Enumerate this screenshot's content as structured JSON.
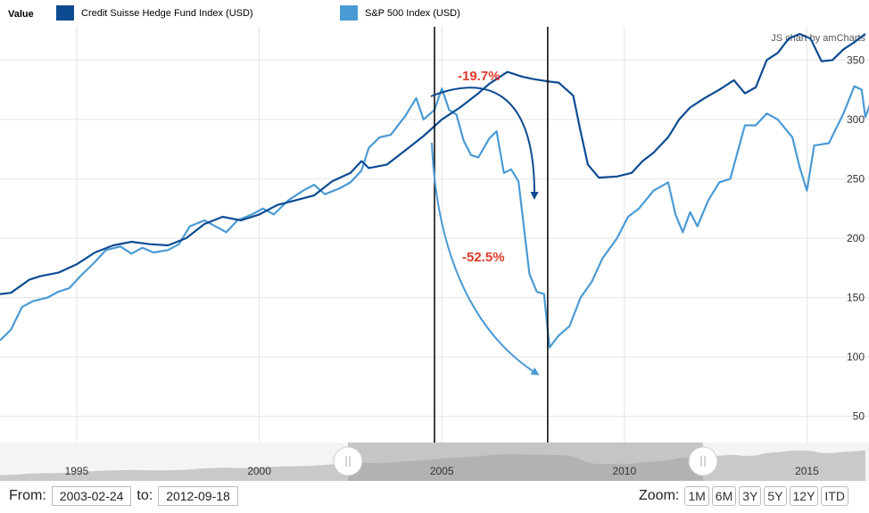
{
  "legend": {
    "title": "Value",
    "series_a": "Credit Suisse Hedge Fund Index (USD)",
    "series_b": "S&P 500 Index (USD)"
  },
  "credit": "JS chart by amCharts",
  "annotations": {
    "hf_drawdown": "-19.7%",
    "sp_drawdown": "-52.5%"
  },
  "colors": {
    "hedge_fund": "#0d4b91",
    "sp500": "#4a9ad4",
    "annotation_text": "#e03a2c",
    "grid": "#e4e4e4"
  },
  "chart_data": {
    "type": "line",
    "title": "",
    "xlabel": "",
    "ylabel": "",
    "xlim": [
      1992.9,
      2016.7
    ],
    "ylim": [
      28,
      378
    ],
    "y_ticks": [
      50,
      100,
      150,
      200,
      250,
      300,
      350
    ],
    "x_ticks": [
      1995,
      2000,
      2005,
      2010,
      2015
    ],
    "vertical_markers": [
      2004.8,
      2007.9
    ],
    "series": [
      {
        "name": "Credit Suisse Hedge Fund Index (USD)",
        "points": [
          [
            1992.9,
            153
          ],
          [
            1993.2,
            154
          ],
          [
            1993.7,
            165
          ],
          [
            1994.0,
            168
          ],
          [
            1994.5,
            171
          ],
          [
            1995.0,
            178
          ],
          [
            1995.5,
            188
          ],
          [
            1996.0,
            194
          ],
          [
            1996.5,
            197
          ],
          [
            1997.0,
            195
          ],
          [
            1997.5,
            194
          ],
          [
            1998.0,
            200
          ],
          [
            1998.5,
            212
          ],
          [
            1999.0,
            218
          ],
          [
            1999.5,
            215
          ],
          [
            2000.0,
            220
          ],
          [
            2000.5,
            228
          ],
          [
            2001.0,
            232
          ],
          [
            2001.5,
            236
          ],
          [
            2002.0,
            248
          ],
          [
            2002.5,
            255
          ],
          [
            2002.8,
            265
          ],
          [
            2003.0,
            259
          ],
          [
            2003.5,
            262
          ],
          [
            2004.0,
            274
          ],
          [
            2004.5,
            286
          ],
          [
            2005.0,
            300
          ],
          [
            2005.5,
            310
          ],
          [
            2006.0,
            322
          ],
          [
            2006.3,
            330
          ],
          [
            2006.8,
            340
          ],
          [
            2007.2,
            336
          ],
          [
            2007.5,
            334
          ],
          [
            2007.9,
            332
          ],
          [
            2008.2,
            331
          ],
          [
            2008.6,
            320
          ],
          [
            2008.8,
            290
          ],
          [
            2009.0,
            262
          ],
          [
            2009.3,
            251
          ],
          [
            2009.8,
            252
          ],
          [
            2010.2,
            255
          ],
          [
            2010.5,
            265
          ],
          [
            2010.8,
            272
          ],
          [
            2011.2,
            285
          ],
          [
            2011.5,
            300
          ],
          [
            2011.8,
            310
          ],
          [
            2012.2,
            318
          ],
          [
            2012.6,
            325
          ],
          [
            2013.0,
            333
          ],
          [
            2013.3,
            322
          ],
          [
            2013.6,
            327
          ],
          [
            2013.9,
            350
          ],
          [
            2014.2,
            356
          ],
          [
            2014.5,
            368
          ],
          [
            2014.8,
            372
          ],
          [
            2015.1,
            368
          ],
          [
            2015.4,
            349
          ],
          [
            2015.7,
            350
          ],
          [
            2016.0,
            359
          ],
          [
            2016.3,
            365
          ],
          [
            2016.6,
            372
          ]
        ]
      },
      {
        "name": "S&P 500 Index (USD)",
        "points": [
          [
            1992.9,
            114
          ],
          [
            1993.2,
            123
          ],
          [
            1993.5,
            142
          ],
          [
            1993.8,
            147
          ],
          [
            1994.2,
            150
          ],
          [
            1994.5,
            155
          ],
          [
            1994.8,
            158
          ],
          [
            1995.1,
            168
          ],
          [
            1995.5,
            180
          ],
          [
            1995.8,
            190
          ],
          [
            1996.2,
            193
          ],
          [
            1996.5,
            187
          ],
          [
            1996.8,
            192
          ],
          [
            1997.1,
            188
          ],
          [
            1997.5,
            190
          ],
          [
            1997.8,
            195
          ],
          [
            1998.1,
            210
          ],
          [
            1998.5,
            215
          ],
          [
            1998.8,
            210
          ],
          [
            1999.1,
            205
          ],
          [
            1999.4,
            215
          ],
          [
            1999.8,
            220
          ],
          [
            2000.1,
            225
          ],
          [
            2000.4,
            220
          ],
          [
            2000.8,
            232
          ],
          [
            2001.2,
            240
          ],
          [
            2001.5,
            245
          ],
          [
            2001.8,
            237
          ],
          [
            2002.2,
            242
          ],
          [
            2002.5,
            247
          ],
          [
            2002.8,
            257
          ],
          [
            2003.0,
            276
          ],
          [
            2003.3,
            285
          ],
          [
            2003.6,
            287
          ],
          [
            2004.0,
            303
          ],
          [
            2004.3,
            318
          ],
          [
            2004.5,
            300
          ],
          [
            2004.8,
            308
          ],
          [
            2005.0,
            326
          ],
          [
            2005.2,
            308
          ],
          [
            2005.4,
            304
          ],
          [
            2005.6,
            282
          ],
          [
            2005.8,
            270
          ],
          [
            2006.0,
            268
          ],
          [
            2006.3,
            284
          ],
          [
            2006.5,
            290
          ],
          [
            2006.7,
            255
          ],
          [
            2006.9,
            258
          ],
          [
            2007.1,
            248
          ],
          [
            2007.4,
            170
          ],
          [
            2007.6,
            155
          ],
          [
            2007.8,
            153
          ],
          [
            2007.95,
            108
          ],
          [
            2008.2,
            118
          ],
          [
            2008.5,
            126
          ],
          [
            2008.8,
            150
          ],
          [
            2009.1,
            163
          ],
          [
            2009.4,
            183
          ],
          [
            2009.8,
            200
          ],
          [
            2010.1,
            218
          ],
          [
            2010.4,
            225
          ],
          [
            2010.8,
            240
          ],
          [
            2011.2,
            247
          ],
          [
            2011.4,
            220
          ],
          [
            2011.6,
            205
          ],
          [
            2011.8,
            222
          ],
          [
            2012.0,
            210
          ],
          [
            2012.3,
            232
          ],
          [
            2012.6,
            247
          ],
          [
            2012.9,
            250
          ],
          [
            2013.3,
            295
          ],
          [
            2013.6,
            295
          ],
          [
            2013.9,
            305
          ],
          [
            2014.2,
            300
          ],
          [
            2014.6,
            285
          ],
          [
            2014.8,
            260
          ],
          [
            2015.0,
            240
          ],
          [
            2015.2,
            278
          ],
          [
            2015.6,
            280
          ],
          [
            2016.0,
            305
          ],
          [
            2016.3,
            328
          ],
          [
            2016.5,
            325
          ],
          [
            2016.6,
            302
          ],
          [
            2016.7,
            310
          ],
          [
            2016.85,
            325
          ],
          [
            2017.0,
            348
          ]
        ]
      }
    ]
  },
  "navigator": {
    "years": [
      "1995",
      "2000",
      "2005",
      "2010",
      "2015"
    ]
  },
  "range": {
    "from_label": "From:",
    "from_value": "2003-02-24",
    "to_label": "to:",
    "to_value": "2012-09-18"
  },
  "zoom": {
    "label": "Zoom:",
    "buttons": [
      "1M",
      "6M",
      "3Y",
      "5Y",
      "12Y",
      "ITD"
    ]
  }
}
